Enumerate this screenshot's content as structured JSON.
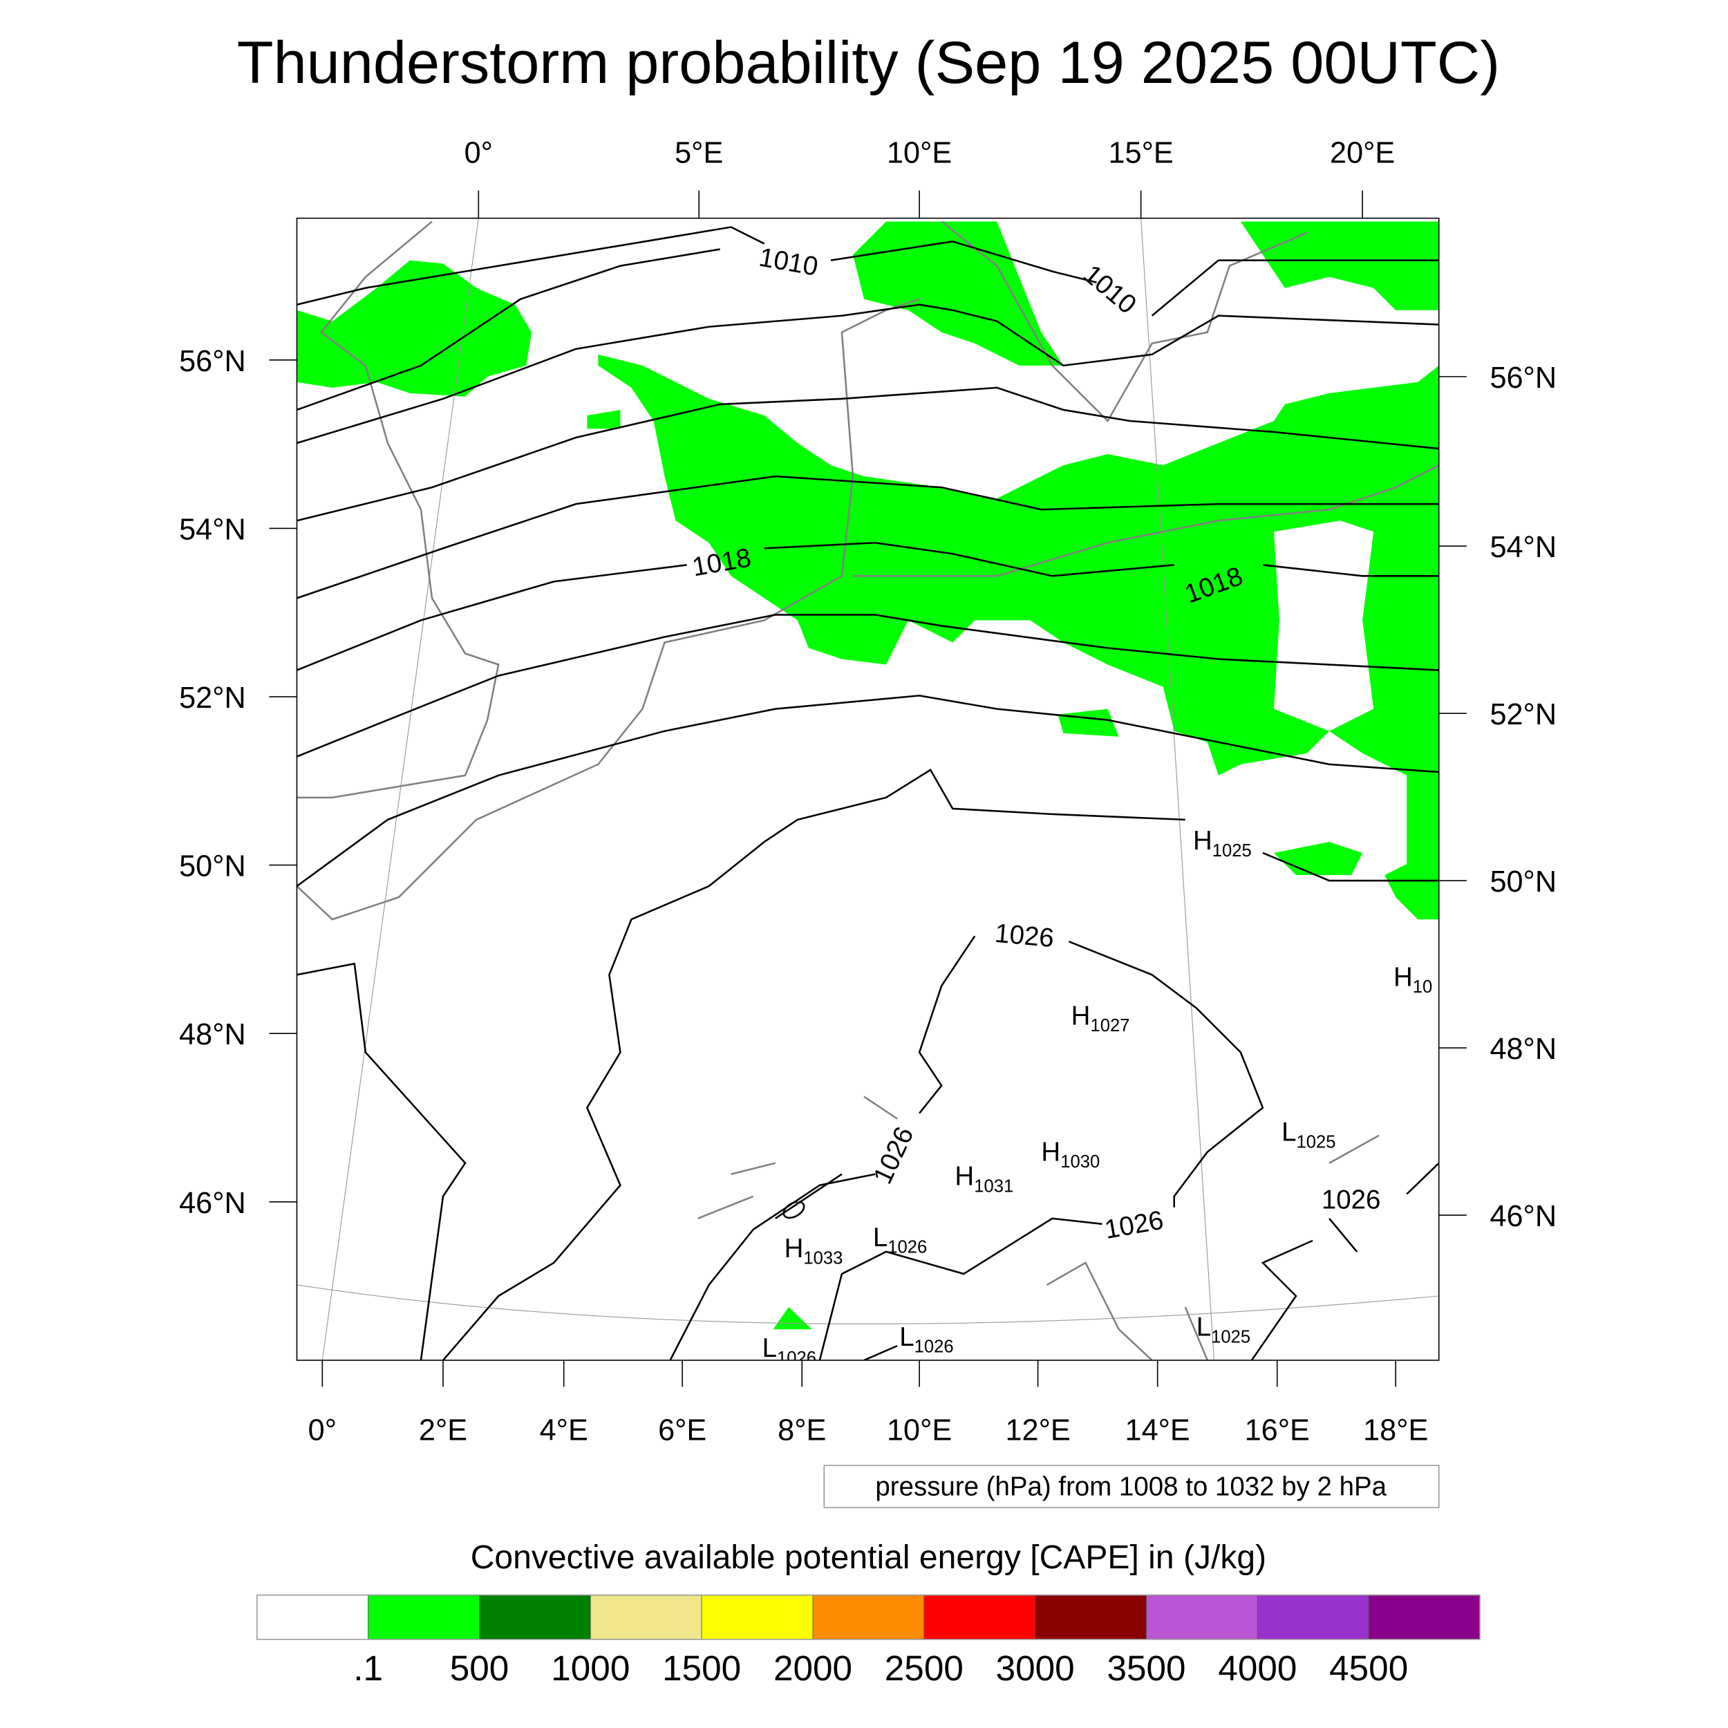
{
  "title": "Thunderstorm probability (Sep 19 2025 00UTC)",
  "chart_data": {
    "type": "heatmap",
    "title": "Thunderstorm probability (Sep 19 2025 00UTC)",
    "map_projection": "Lambert conformal",
    "top_lon_labels": [
      "0°",
      "5°E",
      "10°E",
      "15°E",
      "20°E"
    ],
    "bottom_lon_labels": [
      "0°",
      "2°E",
      "4°E",
      "6°E",
      "8°E",
      "10°E",
      "12°E",
      "14°E",
      "16°E",
      "18°E"
    ],
    "left_lat_labels": [
      "56°N",
      "54°N",
      "52°N",
      "50°N",
      "48°N",
      "46°N"
    ],
    "right_lat_labels": [
      "56°N",
      "54°N",
      "52°N",
      "50°N",
      "48°N",
      "46°N"
    ],
    "contour_info": "pressure (hPa) from 1008 to 1032 by 2 hPa",
    "contour_labels": [
      "1010",
      "1010",
      "1018",
      "1018",
      "1026",
      "1026",
      "1026",
      "1026"
    ],
    "pressure_centers": [
      {
        "type": "H",
        "value": "1025"
      },
      {
        "type": "H",
        "value": "10"
      },
      {
        "type": "H",
        "value": "1027"
      },
      {
        "type": "L",
        "value": "1025"
      },
      {
        "type": "H",
        "value": "1030"
      },
      {
        "type": "H",
        "value": "1031"
      },
      {
        "type": "H",
        "value": "1033"
      },
      {
        "type": "L",
        "value": "1026"
      },
      {
        "type": "L",
        "value": "1026"
      },
      {
        "type": "L",
        "value": "1025"
      },
      {
        "type": "L",
        "value": "1026"
      }
    ],
    "colorbar": {
      "title": "Convective available potential energy [CAPE] in (J/kg)",
      "labels": [
        ".1",
        "500",
        "1000",
        "1500",
        "2000",
        "2500",
        "3000",
        "3500",
        "4000",
        "4500"
      ],
      "colors": [
        "#ffffff",
        "#00ff00",
        "#008000",
        "#f0e68c",
        "#ffff00",
        "#ff8c00",
        "#ff0000",
        "#8b0000",
        "#ba55d3",
        "#9932cc",
        "#8b008b"
      ]
    },
    "observed_cape_class": ".1-500"
  }
}
